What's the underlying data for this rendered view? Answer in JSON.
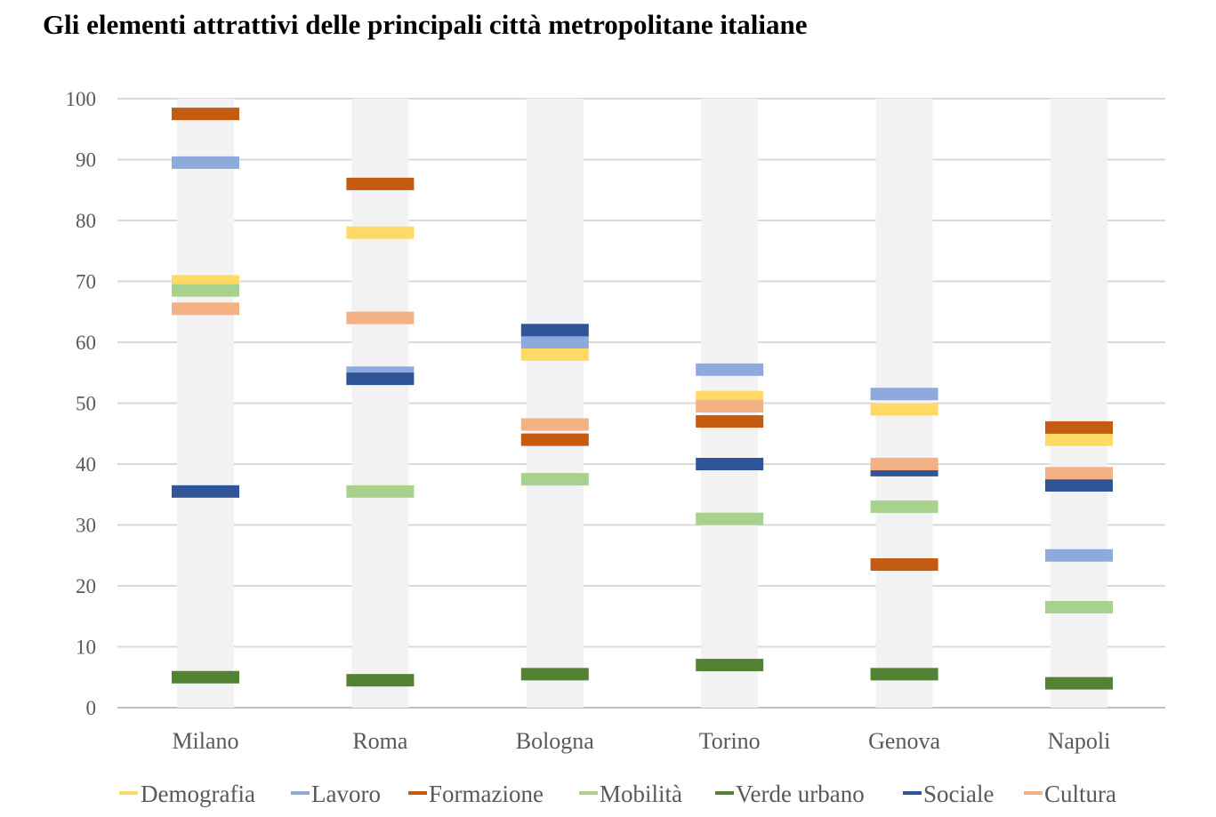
{
  "chart_data": {
    "type": "bar",
    "title": "Gli elementi attrattivi delle principali città metropolitane italiane",
    "categories": [
      "Milano",
      "Roma",
      "Bologna",
      "Torino",
      "Genova",
      "Napoli"
    ],
    "ylim": [
      0,
      100
    ],
    "yticks": [
      0,
      10,
      20,
      30,
      40,
      50,
      60,
      70,
      80,
      90,
      100
    ],
    "grid": true,
    "legend_position": "bottom",
    "series": [
      {
        "name": "Demografia",
        "color": "#FFD966",
        "values": [
          70,
          78,
          58,
          51,
          49,
          44
        ]
      },
      {
        "name": "Lavoro",
        "color": "#8EA9DB",
        "values": [
          89.5,
          55,
          60,
          55.5,
          51.5,
          25
        ]
      },
      {
        "name": "Formazione",
        "color": "#C55A11",
        "values": [
          97.5,
          86,
          44,
          47,
          23.5,
          46
        ]
      },
      {
        "name": "Mobilità",
        "color": "#A9D18E",
        "values": [
          68.5,
          35.5,
          37.5,
          31,
          33,
          16.5
        ]
      },
      {
        "name": "Verde urbano",
        "color": "#548235",
        "values": [
          5,
          4.5,
          5.5,
          7,
          5.5,
          4
        ]
      },
      {
        "name": "Sociale",
        "color": "#2F5597",
        "values": [
          35.5,
          54,
          62,
          40,
          39,
          36.5
        ]
      },
      {
        "name": "Cultura",
        "color": "#F4B183",
        "values": [
          65.5,
          64,
          46.5,
          49.5,
          40,
          38.5
        ]
      }
    ]
  }
}
